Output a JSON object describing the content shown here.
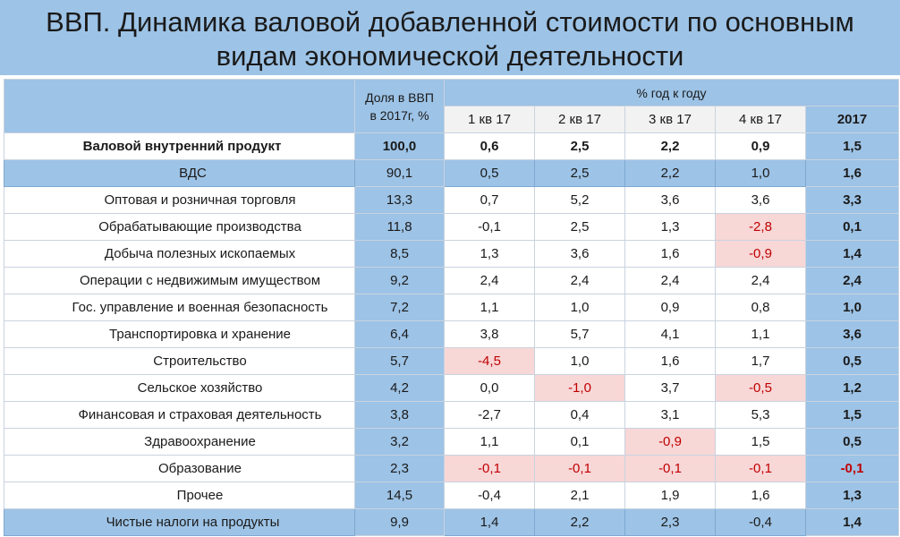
{
  "title": {
    "line1": "ВВП. Динамика валовой добавленной стоимости по основным",
    "line2": "видам экономической деятельности"
  },
  "header": {
    "share_line1": "Доля в ВВП",
    "share_line2": "в 2017г, %",
    "group": "% год к году",
    "q1": "1 кв 17",
    "q2": "2 кв 17",
    "q3": "3 кв 17",
    "q4": "4 кв 17",
    "year": "2017"
  },
  "rows": [
    {
      "name": "Валовой внутренний продукт",
      "share": "100,0",
      "q1": "0,6",
      "q2": "2,5",
      "q3": "2,2",
      "q4": "0,9",
      "year": "1,5"
    },
    {
      "name": "ВДС",
      "share": "90,1",
      "q1": "0,5",
      "q2": "2,5",
      "q3": "2,2",
      "q4": "1,0",
      "year": "1,6"
    },
    {
      "name": "Оптовая и розничная торговля",
      "share": "13,3",
      "q1": "0,7",
      "q2": "5,2",
      "q3": "3,6",
      "q4": "3,6",
      "year": "3,3"
    },
    {
      "name": "Обрабатывающие производства",
      "share": "11,8",
      "q1": "-0,1",
      "q2": "2,5",
      "q3": "1,3",
      "q4": "-2,8",
      "year": "0,1"
    },
    {
      "name": "Добыча полезных ископаемых",
      "share": "8,5",
      "q1": "1,3",
      "q2": "3,6",
      "q3": "1,6",
      "q4": "-0,9",
      "year": "1,4"
    },
    {
      "name": "Операции с недвижимым имуществом",
      "share": "9,2",
      "q1": "2,4",
      "q2": "2,4",
      "q3": "2,4",
      "q4": "2,4",
      "year": "2,4"
    },
    {
      "name": "Гос. управление и военная безопасность",
      "share": "7,2",
      "q1": "1,1",
      "q2": "1,0",
      "q3": "0,9",
      "q4": "0,8",
      "year": "1,0"
    },
    {
      "name": "Транспортировка и хранение",
      "share": "6,4",
      "q1": "3,8",
      "q2": "5,7",
      "q3": "4,1",
      "q4": "1,1",
      "year": "3,6"
    },
    {
      "name": "Строительство",
      "share": "5,7",
      "q1": "-4,5",
      "q2": "1,0",
      "q3": "1,6",
      "q4": "1,7",
      "year": "0,5"
    },
    {
      "name": "Сельское хозяйство",
      "share": "4,2",
      "q1": "0,0",
      "q2": "-1,0",
      "q3": "3,7",
      "q4": "-0,5",
      "year": "1,2"
    },
    {
      "name": "Финансовая и страховая деятельность",
      "share": "3,8",
      "q1": "-2,7",
      "q2": "0,4",
      "q3": "3,1",
      "q4": "5,3",
      "year": "1,5"
    },
    {
      "name": "Здравоохранение",
      "share": "3,2",
      "q1": "1,1",
      "q2": "0,1",
      "q3": "-0,9",
      "q4": "1,5",
      "year": "0,5"
    },
    {
      "name": "Образование",
      "share": "2,3",
      "q1": "-0,1",
      "q2": "-0,1",
      "q3": "-0,1",
      "q4": "-0,1",
      "year": "-0,1"
    },
    {
      "name": "Прочее",
      "share": "14,5",
      "q1": "-0,4",
      "q2": "2,1",
      "q3": "1,9",
      "q4": "1,6",
      "year": "1,3"
    },
    {
      "name": "Чистые налоги на продукты",
      "share": "9,9",
      "q1": "1,4",
      "q2": "2,2",
      "q3": "2,3",
      "q4": "-0,4",
      "year": "1,4"
    }
  ],
  "colors": {
    "band": "#9dc3e6",
    "negative_highlight": "#f8d7d7",
    "negative_text": "#c00000"
  }
}
